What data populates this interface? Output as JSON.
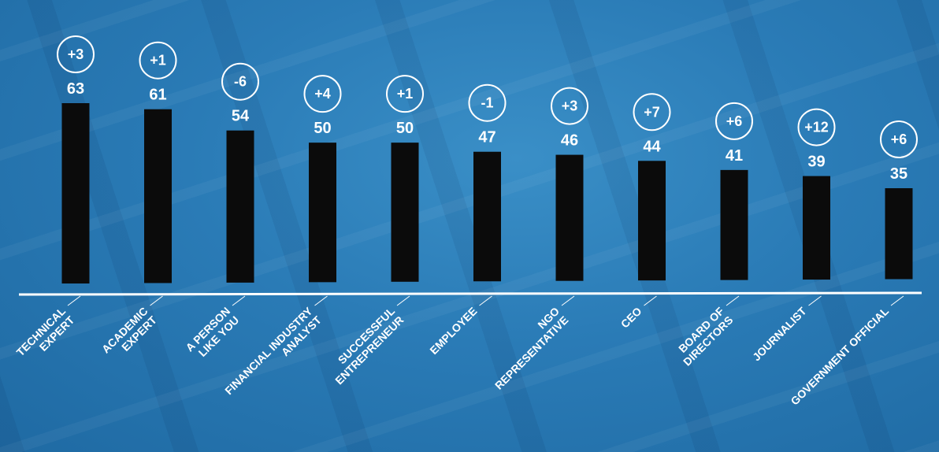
{
  "chart_data": {
    "type": "bar",
    "categories": [
      [
        "TECHNICAL",
        "EXPERT"
      ],
      [
        "ACADEMIC",
        "EXPERT"
      ],
      [
        "A PERSON",
        "LIKE YOU"
      ],
      [
        "FINANCIAL INDUSTRY",
        "ANALYST"
      ],
      [
        "SUCCESSFUL",
        "ENTREPRENEUR"
      ],
      [
        "EMPLOYEE"
      ],
      [
        "NGO",
        "REPRESENTATIVE"
      ],
      [
        "CEO"
      ],
      [
        "BOARD OF",
        "DIRECTORS"
      ],
      [
        "JOURNALIST"
      ],
      [
        "GOVERNMENT OFFICIAL"
      ]
    ],
    "values": [
      63,
      61,
      54,
      50,
      50,
      47,
      46,
      44,
      41,
      39,
      35
    ],
    "changes": [
      "+3",
      "+1",
      "-6",
      "+4",
      "+1",
      "-1",
      "+3",
      "+7",
      "+6",
      "+12",
      "+6"
    ],
    "title": "",
    "xlabel": "",
    "ylabel": "",
    "ylim": [
      0,
      63
    ],
    "grid": false,
    "legend": "none"
  },
  "colors": {
    "bar": "#0b0b0b",
    "baseline": "#ffffff",
    "text": "#ffffff",
    "badge_stroke": "#ffffff",
    "background": "#2a7bb6"
  }
}
